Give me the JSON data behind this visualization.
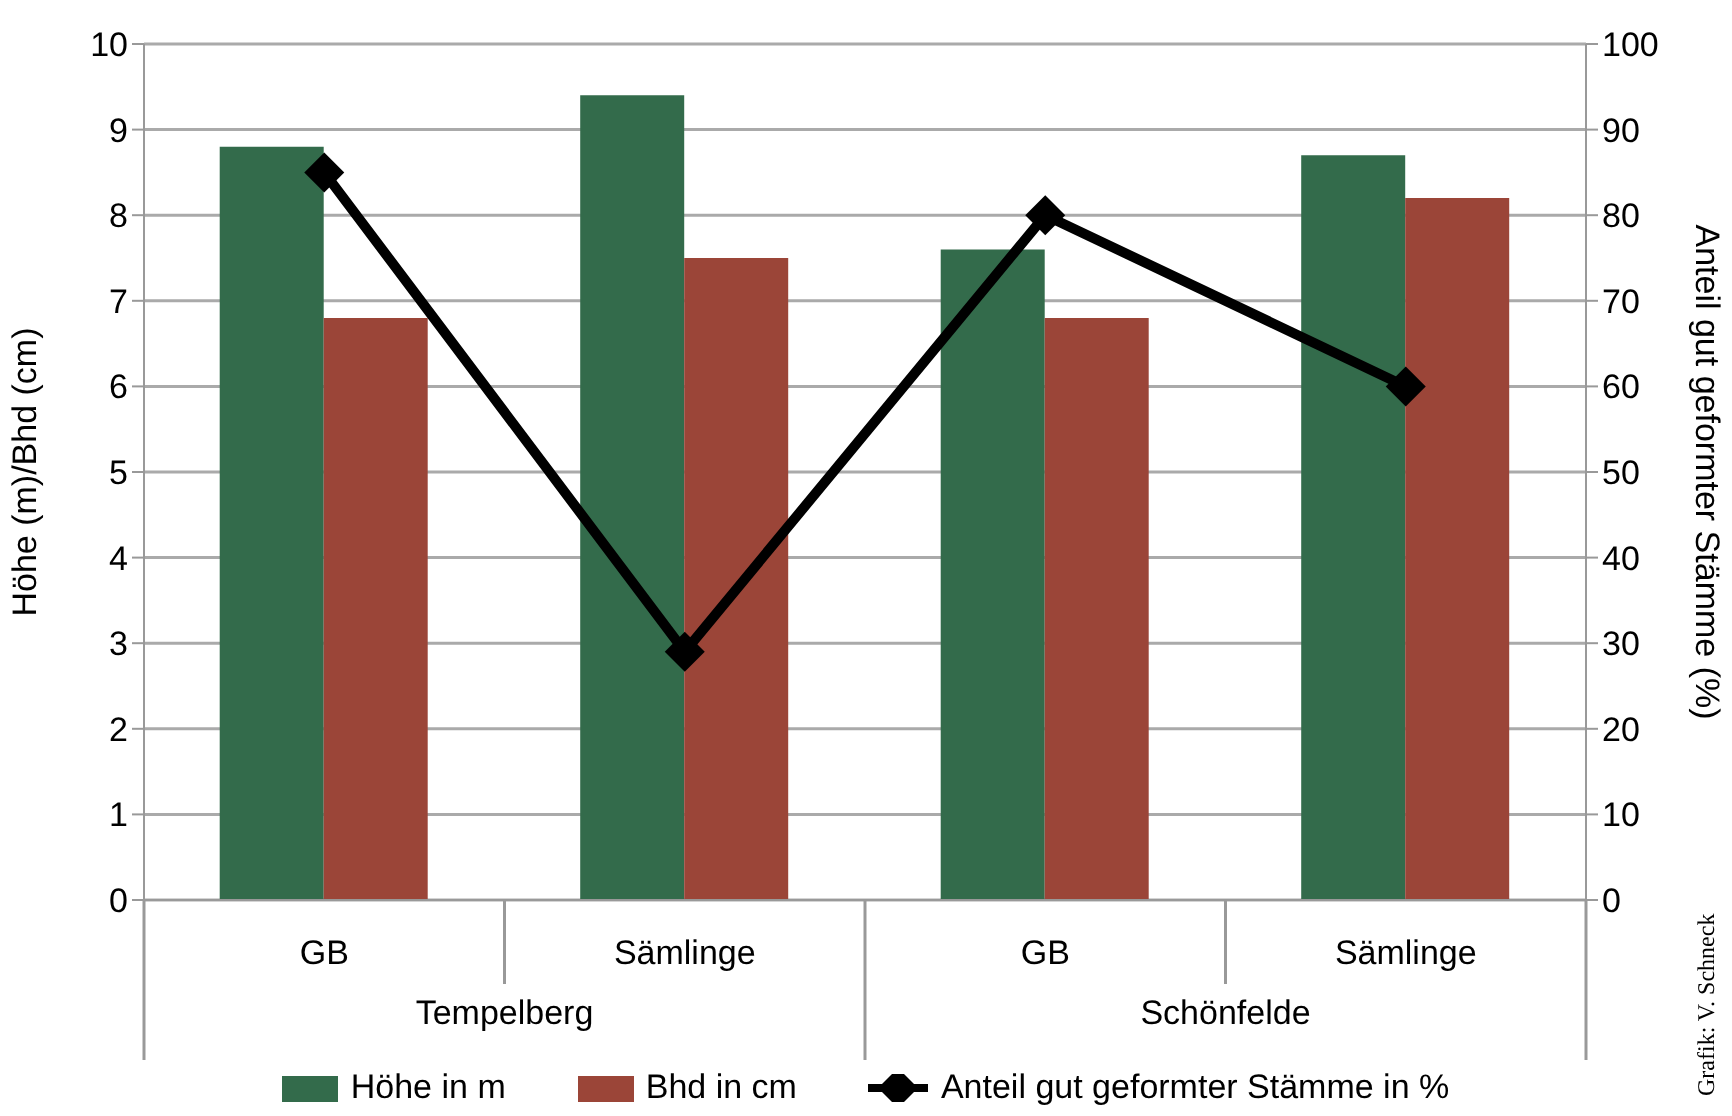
{
  "chart_data": {
    "type": "bar",
    "categories": [
      "GB",
      "Sämlinge",
      "GB",
      "Sämlinge"
    ],
    "ylabel": "Höhe (m)/Bhd (cm)",
    "y2label": "Anteil gut geformter Stämme (%)",
    "ylim": [
      0,
      10
    ],
    "yticks": [
      0,
      1,
      2,
      3,
      4,
      5,
      6,
      7,
      8,
      9,
      10
    ],
    "y2lim": [
      0,
      100
    ],
    "y2ticks": [
      0,
      10,
      20,
      30,
      40,
      50,
      60,
      70,
      80,
      90,
      100
    ],
    "series": [
      {
        "name": "Höhe in m",
        "color": "#336b4b",
        "values": [
          8.8,
          9.4,
          7.6,
          8.7
        ]
      },
      {
        "name": "Bhd in cm",
        "color": "#9b4538",
        "values": [
          6.8,
          7.5,
          6.8,
          8.2
        ]
      },
      {
        "name": "Anteil gut geformter Stämme in %",
        "type": "line",
        "axis": "y2",
        "color": "#000000",
        "values": [
          85,
          29,
          80,
          60
        ]
      }
    ],
    "annotations": [
      "Tempelberg",
      "Schönfelde",
      "Grafik: V. Schneck"
    ],
    "grid": "y",
    "legend": "bottom",
    "marker": "diamond",
    "line_style": "solid"
  }
}
